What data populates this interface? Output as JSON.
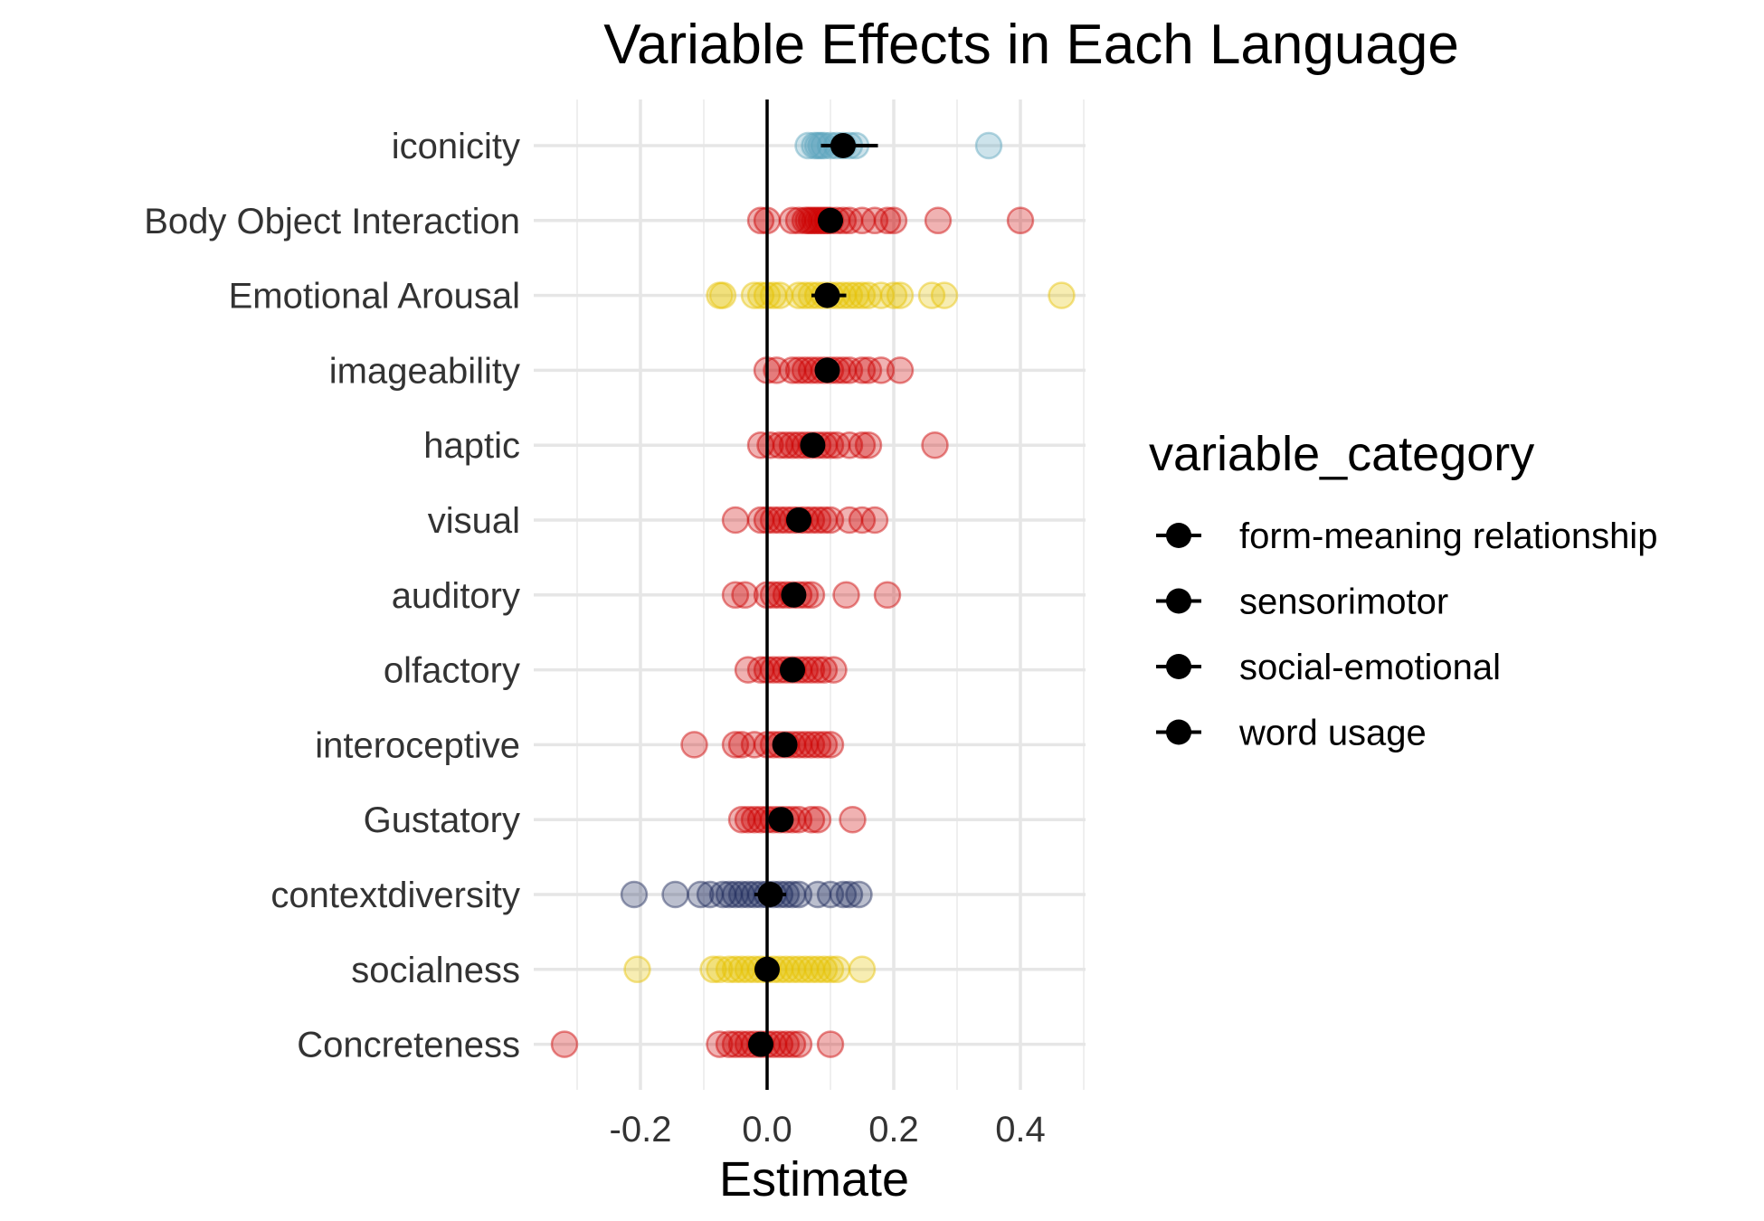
{
  "chart_data": {
    "type": "scatter",
    "title": "Variable Effects in Each Language",
    "xlabel": "Estimate",
    "ylabel": "",
    "xlim": [
      -0.34,
      0.5
    ],
    "x_ticks": [
      -0.2,
      0.0,
      0.2,
      0.4
    ],
    "x_tick_labels": [
      "-0.2",
      "0.0",
      "0.2",
      "0.4"
    ],
    "grid": true,
    "reference_line_x": 0,
    "legend": {
      "title": "variable_category",
      "position": "right",
      "entries": [
        "form-meaning relationship",
        "sensorimotor",
        "social-emotional",
        "word usage"
      ]
    },
    "colors": {
      "form-meaning relationship": "#5ba3bd",
      "sensorimotor": "#cc0000",
      "social-emotional": "#e6c200",
      "word usage": "#1f2a5c",
      "mean": "#000000"
    },
    "variables": [
      {
        "name": "iconicity",
        "category": "form-meaning relationship",
        "mean": 0.12,
        "ci": [
          0.085,
          0.175
        ],
        "points": [
          0.065,
          0.075,
          0.08,
          0.085,
          0.09,
          0.1,
          0.11,
          0.12,
          0.13,
          0.14,
          0.35
        ]
      },
      {
        "name": "Body Object Interaction",
        "category": "sensorimotor",
        "mean": 0.1,
        "ci": [
          0.08,
          0.12
        ],
        "points": [
          -0.01,
          0.0,
          0.04,
          0.05,
          0.06,
          0.065,
          0.07,
          0.075,
          0.08,
          0.085,
          0.09,
          0.095,
          0.1,
          0.11,
          0.12,
          0.13,
          0.15,
          0.17,
          0.19,
          0.2,
          0.27,
          0.4
        ]
      },
      {
        "name": "Emotional Arousal",
        "category": "social-emotional",
        "mean": 0.095,
        "ci": [
          0.07,
          0.125
        ],
        "points": [
          -0.075,
          -0.07,
          -0.02,
          -0.01,
          0.0,
          0.01,
          0.02,
          0.05,
          0.06,
          0.07,
          0.08,
          0.09,
          0.1,
          0.11,
          0.12,
          0.13,
          0.14,
          0.15,
          0.16,
          0.18,
          0.2,
          0.21,
          0.26,
          0.28,
          0.465
        ]
      },
      {
        "name": "imageability",
        "category": "sensorimotor",
        "mean": 0.095,
        "ci": [
          0.08,
          0.11
        ],
        "points": [
          0.0,
          0.015,
          0.04,
          0.05,
          0.06,
          0.07,
          0.08,
          0.09,
          0.1,
          0.11,
          0.12,
          0.13,
          0.15,
          0.16,
          0.18,
          0.21
        ]
      },
      {
        "name": "haptic",
        "category": "sensorimotor",
        "mean": 0.072,
        "ci": [
          0.055,
          0.09
        ],
        "points": [
          -0.01,
          0.005,
          0.02,
          0.03,
          0.04,
          0.05,
          0.06,
          0.07,
          0.08,
          0.09,
          0.1,
          0.11,
          0.13,
          0.15,
          0.16,
          0.265
        ]
      },
      {
        "name": "visual",
        "category": "sensorimotor",
        "mean": 0.05,
        "ci": [
          0.035,
          0.065
        ],
        "points": [
          -0.05,
          -0.01,
          0.0,
          0.01,
          0.02,
          0.03,
          0.04,
          0.05,
          0.06,
          0.07,
          0.08,
          0.09,
          0.1,
          0.13,
          0.15,
          0.17
        ]
      },
      {
        "name": "auditory",
        "category": "sensorimotor",
        "mean": 0.042,
        "ci": [
          0.03,
          0.055
        ],
        "points": [
          -0.05,
          -0.035,
          0.0,
          0.01,
          0.02,
          0.03,
          0.04,
          0.05,
          0.06,
          0.07,
          0.125,
          0.19
        ]
      },
      {
        "name": "olfactory",
        "category": "sensorimotor",
        "mean": 0.04,
        "ci": [
          0.03,
          0.05
        ],
        "points": [
          -0.03,
          -0.01,
          0.0,
          0.01,
          0.02,
          0.03,
          0.04,
          0.05,
          0.06,
          0.07,
          0.08,
          0.09,
          0.105
        ]
      },
      {
        "name": "interoceptive",
        "category": "sensorimotor",
        "mean": 0.028,
        "ci": [
          0.015,
          0.04
        ],
        "points": [
          -0.115,
          -0.05,
          -0.04,
          -0.02,
          0.0,
          0.01,
          0.02,
          0.03,
          0.04,
          0.05,
          0.06,
          0.07,
          0.08,
          0.09,
          0.1
        ]
      },
      {
        "name": "Gustatory",
        "category": "sensorimotor",
        "mean": 0.022,
        "ci": [
          0.01,
          0.035
        ],
        "points": [
          -0.04,
          -0.03,
          -0.02,
          -0.01,
          0.0,
          0.01,
          0.02,
          0.03,
          0.04,
          0.05,
          0.07,
          0.08,
          0.135
        ]
      },
      {
        "name": "contextdiversity",
        "category": "word usage",
        "mean": 0.005,
        "ci": [
          -0.02,
          0.03
        ],
        "points": [
          -0.21,
          -0.145,
          -0.105,
          -0.09,
          -0.07,
          -0.06,
          -0.05,
          -0.04,
          -0.03,
          -0.02,
          -0.01,
          0.0,
          0.01,
          0.02,
          0.03,
          0.04,
          0.05,
          0.08,
          0.1,
          0.12,
          0.13,
          0.145
        ]
      },
      {
        "name": "socialness",
        "category": "social-emotional",
        "mean": 0.0,
        "ci": [
          -0.015,
          0.015
        ],
        "points": [
          -0.205,
          -0.085,
          -0.075,
          -0.06,
          -0.05,
          -0.04,
          -0.03,
          -0.02,
          -0.01,
          0.0,
          0.01,
          0.02,
          0.03,
          0.04,
          0.05,
          0.06,
          0.07,
          0.08,
          0.09,
          0.1,
          0.11,
          0.15
        ]
      },
      {
        "name": "Concreteness",
        "category": "sensorimotor",
        "mean": -0.01,
        "ci": [
          -0.025,
          0.005
        ],
        "points": [
          -0.32,
          -0.075,
          -0.06,
          -0.05,
          -0.04,
          -0.03,
          -0.02,
          -0.01,
          0.0,
          0.01,
          0.02,
          0.03,
          0.04,
          0.05,
          0.1
        ]
      }
    ]
  }
}
